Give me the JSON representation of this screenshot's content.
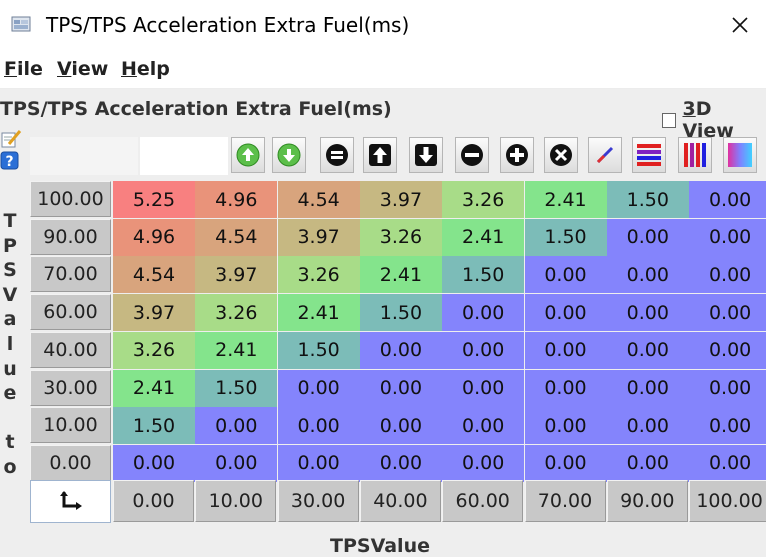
{
  "window": {
    "title": "TPS/TPS Acceleration Extra Fuel(ms)"
  },
  "menu": {
    "file": "File",
    "view": "View",
    "help": "Help"
  },
  "panel": {
    "title": "TPS/TPS Acceleration Extra Fuel(ms)",
    "view3d_label_pre": "3",
    "view3d_label_post": "D View",
    "view3d_checked": false
  },
  "toolbar": [
    "increase-icon",
    "decrease-icon",
    "equals-icon",
    "up-arrow-icon",
    "down-arrow-icon",
    "minus-icon",
    "plus-icon",
    "clear-icon",
    "interpolate-icon",
    "row-color-icon",
    "column-color-icon",
    "gradient-icon"
  ],
  "y_axis_label": [
    "T",
    "P",
    "S",
    "V",
    "a",
    "l",
    "u",
    "e",
    "",
    "t",
    "o"
  ],
  "x_axis_label": "TPSValue",
  "rows": [
    "100.00",
    "90.00",
    "70.00",
    "60.00",
    "40.00",
    "30.00",
    "10.00",
    "0.00"
  ],
  "cols": [
    "0.00",
    "10.00",
    "30.00",
    "40.00",
    "60.00",
    "70.00",
    "90.00",
    "100.00"
  ],
  "values": [
    [
      "5.25",
      "4.96",
      "4.54",
      "3.97",
      "3.26",
      "2.41",
      "1.50",
      "0.00"
    ],
    [
      "4.96",
      "4.54",
      "3.97",
      "3.26",
      "2.41",
      "1.50",
      "0.00",
      "0.00"
    ],
    [
      "4.54",
      "3.97",
      "3.26",
      "2.41",
      "1.50",
      "0.00",
      "0.00",
      "0.00"
    ],
    [
      "3.97",
      "3.26",
      "2.41",
      "1.50",
      "0.00",
      "0.00",
      "0.00",
      "0.00"
    ],
    [
      "3.26",
      "2.41",
      "1.50",
      "0.00",
      "0.00",
      "0.00",
      "0.00",
      "0.00"
    ],
    [
      "2.41",
      "1.50",
      "0.00",
      "0.00",
      "0.00",
      "0.00",
      "0.00",
      "0.00"
    ],
    [
      "1.50",
      "0.00",
      "0.00",
      "0.00",
      "0.00",
      "0.00",
      "0.00",
      "0.00"
    ],
    [
      "0.00",
      "0.00",
      "0.00",
      "0.00",
      "0.00",
      "0.00",
      "0.00",
      "0.00"
    ]
  ],
  "colors": {
    "5.25": "#f88080",
    "4.96": "#e9937a",
    "4.54": "#d8a47d",
    "3.97": "#c6b882",
    "3.26": "#a8dc88",
    "2.41": "#84e48c",
    "1.50": "#7cbcb8",
    "0.00": "#8484fc"
  }
}
